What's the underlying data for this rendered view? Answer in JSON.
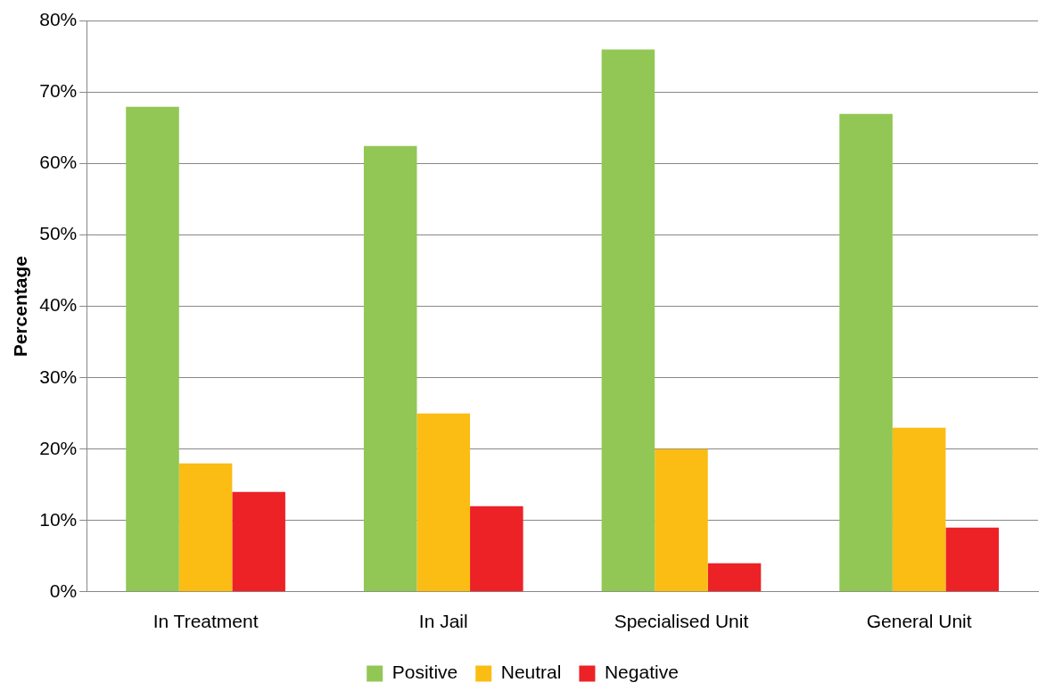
{
  "chart_data": {
    "type": "bar",
    "ylabel": "Percentage",
    "categories": [
      "In Treatment",
      "In Jail",
      "Specialised Unit",
      "General Unit"
    ],
    "series": [
      {
        "name": "Positive",
        "color": "#92c755",
        "values": [
          68,
          62.5,
          76,
          67
        ]
      },
      {
        "name": "Neutral",
        "color": "#fbbd13",
        "values": [
          18,
          25,
          20,
          23
        ]
      },
      {
        "name": "Negative",
        "color": "#ec2227",
        "values": [
          14,
          12,
          4,
          9
        ]
      }
    ],
    "ylim": [
      0,
      80
    ],
    "yticks": [
      {
        "value": 0,
        "label": "0%"
      },
      {
        "value": 10,
        "label": "10%"
      },
      {
        "value": 20,
        "label": "20%"
      },
      {
        "value": 30,
        "label": "30%"
      },
      {
        "value": 40,
        "label": "40%"
      },
      {
        "value": 50,
        "label": "50%"
      },
      {
        "value": 60,
        "label": "60%"
      },
      {
        "value": 70,
        "label": "70%"
      },
      {
        "value": 80,
        "label": "80%"
      }
    ],
    "grid": "y",
    "legend": "bottom"
  }
}
